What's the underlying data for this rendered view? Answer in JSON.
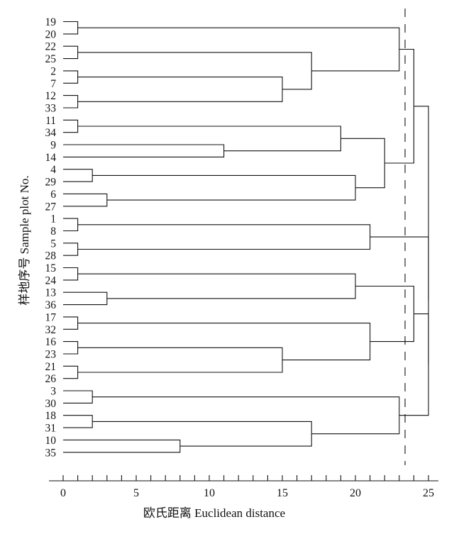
{
  "chart_data": {
    "type": "dendrogram",
    "xlabel": "欧氏距离 Euclidean distance",
    "ylabel": "样地序号 Sample plot No.",
    "xlim": [
      0,
      25
    ],
    "x_ticks": [
      0,
      5,
      10,
      15,
      20,
      25
    ],
    "minor_tick_step": 1,
    "leaf_order": [
      "19",
      "20",
      "22",
      "25",
      "2",
      "7",
      "12",
      "33",
      "11",
      "34",
      "9",
      "14",
      "4",
      "29",
      "6",
      "27",
      "1",
      "8",
      "5",
      "28",
      "15",
      "24",
      "13",
      "36",
      "17",
      "32",
      "16",
      "23",
      "21",
      "26",
      "3",
      "30",
      "18",
      "31",
      "10",
      "35"
    ],
    "merges": [
      {
        "id": "m1",
        "left": "19",
        "right": "20",
        "distance": 1
      },
      {
        "id": "m2",
        "left": "22",
        "right": "25",
        "distance": 1
      },
      {
        "id": "m3",
        "left": "2",
        "right": "7",
        "distance": 1
      },
      {
        "id": "m4",
        "left": "12",
        "right": "33",
        "distance": 1
      },
      {
        "id": "m5",
        "left": "m3",
        "right": "m4",
        "distance": 15
      },
      {
        "id": "m6",
        "left": "m2",
        "right": "m5",
        "distance": 17
      },
      {
        "id": "m7",
        "left": "m1",
        "right": "m6",
        "distance": 23
      },
      {
        "id": "m8",
        "left": "11",
        "right": "34",
        "distance": 1
      },
      {
        "id": "m9",
        "left": "9",
        "right": "14",
        "distance": 11
      },
      {
        "id": "m10",
        "left": "m8",
        "right": "m9",
        "distance": 19
      },
      {
        "id": "m11",
        "left": "4",
        "right": "29",
        "distance": 2
      },
      {
        "id": "m12",
        "left": "6",
        "right": "27",
        "distance": 3
      },
      {
        "id": "m13",
        "left": "m11",
        "right": "m12",
        "distance": 20
      },
      {
        "id": "m14",
        "left": "m10",
        "right": "m13",
        "distance": 22
      },
      {
        "id": "m15",
        "left": "m7",
        "right": "m14",
        "distance": 24
      },
      {
        "id": "m16",
        "left": "1",
        "right": "8",
        "distance": 1
      },
      {
        "id": "m17",
        "left": "5",
        "right": "28",
        "distance": 1
      },
      {
        "id": "m18",
        "left": "m16",
        "right": "m17",
        "distance": 21
      },
      {
        "id": "m19",
        "left": "15",
        "right": "24",
        "distance": 1
      },
      {
        "id": "m20",
        "left": "13",
        "right": "36",
        "distance": 3
      },
      {
        "id": "m21",
        "left": "m19",
        "right": "m20",
        "distance": 20
      },
      {
        "id": "m22",
        "left": "17",
        "right": "32",
        "distance": 1
      },
      {
        "id": "m23",
        "left": "16",
        "right": "23",
        "distance": 1
      },
      {
        "id": "m24",
        "left": "21",
        "right": "26",
        "distance": 1
      },
      {
        "id": "m25",
        "left": "m23",
        "right": "m24",
        "distance": 15
      },
      {
        "id": "m26",
        "left": "m22",
        "right": "m25",
        "distance": 21
      },
      {
        "id": "m27",
        "left": "m21",
        "right": "m26",
        "distance": 24
      },
      {
        "id": "m28",
        "left": "3",
        "right": "30",
        "distance": 2
      },
      {
        "id": "m29",
        "left": "18",
        "right": "31",
        "distance": 2
      },
      {
        "id": "m30",
        "left": "10",
        "right": "35",
        "distance": 8
      },
      {
        "id": "m31",
        "left": "m29",
        "right": "m30",
        "distance": 17
      },
      {
        "id": "m32",
        "left": "m28",
        "right": "m31",
        "distance": 23
      },
      {
        "id": "m33",
        "left": "m27",
        "right": "m32",
        "distance": 25
      },
      {
        "id": "m34",
        "left": "m18",
        "right": "m33",
        "distance": 25
      },
      {
        "id": "m35",
        "left": "m15",
        "right": "m34",
        "distance": 25
      }
    ],
    "cut_line": {
      "distance": 23.4,
      "style": "dashed"
    }
  }
}
